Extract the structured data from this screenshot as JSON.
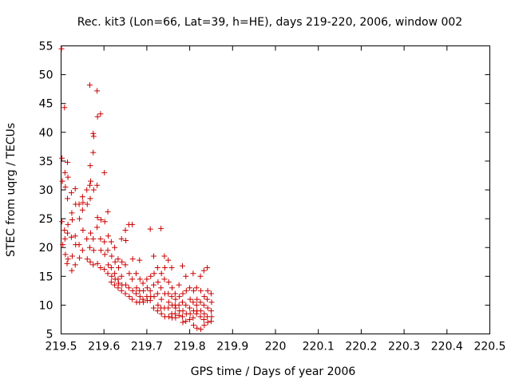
{
  "chart_data": {
    "type": "scatter",
    "title": "Rec. kit3 (Lon=66, Lat=39, h=HE), days 219-220, 2006, window 002",
    "xlabel": "GPS time / Days of year 2006",
    "ylabel": "STEC from uqrg / TECUs",
    "xlim": [
      219.5,
      220.5
    ],
    "ylim": [
      5,
      55
    ],
    "x_ticks": [
      219.5,
      219.6,
      219.7,
      219.8,
      219.9,
      220.0,
      220.1,
      220.2,
      220.3,
      220.4,
      220.5
    ],
    "x_tick_labels": [
      "219.5",
      "219.6",
      "219.7",
      "219.8",
      "219.9",
      "220",
      "220.1",
      "220.2",
      "220.3",
      "220.4",
      "220.5"
    ],
    "y_ticks": [
      5,
      10,
      15,
      20,
      25,
      30,
      35,
      40,
      45,
      50,
      55
    ],
    "y_tick_labels": [
      "5",
      "10",
      "15",
      "20",
      "25",
      "30",
      "35",
      "40",
      "45",
      "50",
      "55"
    ],
    "grid": false,
    "marker": "+",
    "marker_color": "#cc0000",
    "series": [
      {
        "name": "STEC",
        "points": [
          [
            219.501,
            54.5
          ],
          [
            219.502,
            35.5
          ],
          [
            219.503,
            31.5
          ],
          [
            219.502,
            24.5
          ],
          [
            219.504,
            20.5
          ],
          [
            219.508,
            44.3
          ],
          [
            219.509,
            33.0
          ],
          [
            219.51,
            30.5
          ],
          [
            219.508,
            23.0
          ],
          [
            219.509,
            21.5
          ],
          [
            219.51,
            18.8
          ],
          [
            219.515,
            34.8
          ],
          [
            219.516,
            32.2
          ],
          [
            219.515,
            28.5
          ],
          [
            219.516,
            24.0
          ],
          [
            219.515,
            22.5
          ],
          [
            219.516,
            18.0
          ],
          [
            219.514,
            17.2
          ],
          [
            219.524,
            29.5
          ],
          [
            219.525,
            26.0
          ],
          [
            219.526,
            24.8
          ],
          [
            219.524,
            21.8
          ],
          [
            219.526,
            18.5
          ],
          [
            219.525,
            16.0
          ],
          [
            219.533,
            30.2
          ],
          [
            219.534,
            27.5
          ],
          [
            219.533,
            22.0
          ],
          [
            219.534,
            20.5
          ],
          [
            219.533,
            17.0
          ],
          [
            219.542,
            27.5
          ],
          [
            219.543,
            25.0
          ],
          [
            219.542,
            20.5
          ],
          [
            219.543,
            18.2
          ],
          [
            219.55,
            28.8
          ],
          [
            219.551,
            27.8
          ],
          [
            219.55,
            26.5
          ],
          [
            219.551,
            23.0
          ],
          [
            219.55,
            19.5
          ],
          [
            219.56,
            30.0
          ],
          [
            219.561,
            27.5
          ],
          [
            219.56,
            21.5
          ],
          [
            219.561,
            18.0
          ],
          [
            219.567,
            48.2
          ],
          [
            219.568,
            34.2
          ],
          [
            219.569,
            31.5
          ],
          [
            219.567,
            30.8
          ],
          [
            219.568,
            28.5
          ],
          [
            219.569,
            22.5
          ],
          [
            219.567,
            20.0
          ],
          [
            219.568,
            17.5
          ],
          [
            219.575,
            39.8
          ],
          [
            219.576,
            39.3
          ],
          [
            219.575,
            36.5
          ],
          [
            219.576,
            30.0
          ],
          [
            219.575,
            21.5
          ],
          [
            219.576,
            19.5
          ],
          [
            219.575,
            17.0
          ],
          [
            219.584,
            47.2
          ],
          [
            219.585,
            42.7
          ],
          [
            219.584,
            30.8
          ],
          [
            219.585,
            25.2
          ],
          [
            219.584,
            23.5
          ],
          [
            219.585,
            17.2
          ],
          [
            219.592,
            43.2
          ],
          [
            219.593,
            24.8
          ],
          [
            219.592,
            21.5
          ],
          [
            219.593,
            19.5
          ],
          [
            219.592,
            16.5
          ],
          [
            219.601,
            33.0
          ],
          [
            219.602,
            24.5
          ],
          [
            219.601,
            21.0
          ],
          [
            219.602,
            18.8
          ],
          [
            219.601,
            16.2
          ],
          [
            219.609,
            26.2
          ],
          [
            219.61,
            22.0
          ],
          [
            219.609,
            19.5
          ],
          [
            219.61,
            17.0
          ],
          [
            219.609,
            15.5
          ],
          [
            219.617,
            21.0
          ],
          [
            219.618,
            18.5
          ],
          [
            219.617,
            16.5
          ],
          [
            219.618,
            15.0
          ],
          [
            219.617,
            14.0
          ],
          [
            219.625,
            20.0
          ],
          [
            219.626,
            17.5
          ],
          [
            219.625,
            15.5
          ],
          [
            219.626,
            14.5
          ],
          [
            219.625,
            13.5
          ],
          [
            219.633,
            18.0
          ],
          [
            219.634,
            16.5
          ],
          [
            219.633,
            14.5
          ],
          [
            219.634,
            13.8
          ],
          [
            219.633,
            13.0
          ],
          [
            219.641,
            21.5
          ],
          [
            219.642,
            17.5
          ],
          [
            219.641,
            15.0
          ],
          [
            219.642,
            13.5
          ],
          [
            219.641,
            12.5
          ],
          [
            219.65,
            23.0
          ],
          [
            219.651,
            21.2
          ],
          [
            219.65,
            17.0
          ],
          [
            219.651,
            13.5
          ],
          [
            219.65,
            12.0
          ],
          [
            219.658,
            24.0
          ],
          [
            219.659,
            15.5
          ],
          [
            219.658,
            13.0
          ],
          [
            219.659,
            11.5
          ],
          [
            219.666,
            24.0
          ],
          [
            219.667,
            18.0
          ],
          [
            219.666,
            14.5
          ],
          [
            219.667,
            12.5
          ],
          [
            219.666,
            11.0
          ],
          [
            219.675,
            15.5
          ],
          [
            219.676,
            13.0
          ],
          [
            219.675,
            12.0
          ],
          [
            219.676,
            10.5
          ],
          [
            219.683,
            17.8
          ],
          [
            219.684,
            14.5
          ],
          [
            219.683,
            12.5
          ],
          [
            219.684,
            11.5
          ],
          [
            219.683,
            10.5
          ],
          [
            219.691,
            13.8
          ],
          [
            219.692,
            12.5
          ],
          [
            219.691,
            11.0
          ],
          [
            219.692,
            10.5
          ],
          [
            219.7,
            14.5
          ],
          [
            219.701,
            13.0
          ],
          [
            219.7,
            11.5
          ],
          [
            219.701,
            10.8
          ],
          [
            219.708,
            23.2
          ],
          [
            219.709,
            15.0
          ],
          [
            219.708,
            12.5
          ],
          [
            219.709,
            11.5
          ],
          [
            219.708,
            10.8
          ],
          [
            219.716,
            18.5
          ],
          [
            219.717,
            15.5
          ],
          [
            219.716,
            13.5
          ],
          [
            219.717,
            11.5
          ],
          [
            219.716,
            9.5
          ],
          [
            219.725,
            16.5
          ],
          [
            219.726,
            14.0
          ],
          [
            219.725,
            12.0
          ],
          [
            219.726,
            10.0
          ],
          [
            219.725,
            9.0
          ],
          [
            219.733,
            23.3
          ],
          [
            219.734,
            15.5
          ],
          [
            219.733,
            13.0
          ],
          [
            219.734,
            11.0
          ],
          [
            219.733,
            9.5
          ],
          [
            219.734,
            8.5
          ],
          [
            219.741,
            18.5
          ],
          [
            219.742,
            16.5
          ],
          [
            219.741,
            14.5
          ],
          [
            219.742,
            12.0
          ],
          [
            219.741,
            9.5
          ],
          [
            219.742,
            8.0
          ],
          [
            219.75,
            17.8
          ],
          [
            219.751,
            14.0
          ],
          [
            219.75,
            12.0
          ],
          [
            219.751,
            10.5
          ],
          [
            219.75,
            9.5
          ],
          [
            219.751,
            8.0
          ],
          [
            219.758,
            16.5
          ],
          [
            219.759,
            13.0
          ],
          [
            219.758,
            11.5
          ],
          [
            219.759,
            10.0
          ],
          [
            219.758,
            8.5
          ],
          [
            219.759,
            7.8
          ],
          [
            219.766,
            12.0
          ],
          [
            219.767,
            11.0
          ],
          [
            219.766,
            10.0
          ],
          [
            219.767,
            9.5
          ],
          [
            219.766,
            8.5
          ],
          [
            219.767,
            7.8
          ],
          [
            219.775,
            13.5
          ],
          [
            219.776,
            11.5
          ],
          [
            219.775,
            10.0
          ],
          [
            219.776,
            9.0
          ],
          [
            219.775,
            8.2
          ],
          [
            219.783,
            16.8
          ],
          [
            219.784,
            12.0
          ],
          [
            219.783,
            10.5
          ],
          [
            219.784,
            9.0
          ],
          [
            219.783,
            8.0
          ],
          [
            219.784,
            7.0
          ],
          [
            219.791,
            15.0
          ],
          [
            219.792,
            12.5
          ],
          [
            219.791,
            10.0
          ],
          [
            219.792,
            8.5
          ],
          [
            219.791,
            7.2
          ],
          [
            219.8,
            13.0
          ],
          [
            219.801,
            11.0
          ],
          [
            219.8,
            9.5
          ],
          [
            219.801,
            8.5
          ],
          [
            219.8,
            7.5
          ],
          [
            219.808,
            15.5
          ],
          [
            219.809,
            12.5
          ],
          [
            219.808,
            10.5
          ],
          [
            219.809,
            9.0
          ],
          [
            219.808,
            7.8
          ],
          [
            219.809,
            6.5
          ],
          [
            219.816,
            13.0
          ],
          [
            219.817,
            11.0
          ],
          [
            219.816,
            10.0
          ],
          [
            219.817,
            9.0
          ],
          [
            219.816,
            8.5
          ],
          [
            219.817,
            6.0
          ],
          [
            219.825,
            15.0
          ],
          [
            219.826,
            12.5
          ],
          [
            219.825,
            10.5
          ],
          [
            219.826,
            9.0
          ],
          [
            219.825,
            8.0
          ],
          [
            219.826,
            5.8
          ],
          [
            219.833,
            16.0
          ],
          [
            219.834,
            11.5
          ],
          [
            219.833,
            10.0
          ],
          [
            219.834,
            8.5
          ],
          [
            219.833,
            7.5
          ],
          [
            219.834,
            6.5
          ],
          [
            219.841,
            16.5
          ],
          [
            219.842,
            12.5
          ],
          [
            219.841,
            11.0
          ],
          [
            219.842,
            9.5
          ],
          [
            219.841,
            8.0
          ],
          [
            219.842,
            7.0
          ],
          [
            219.85,
            12.0
          ],
          [
            219.851,
            10.5
          ],
          [
            219.85,
            9.0
          ],
          [
            219.851,
            8.0
          ],
          [
            219.85,
            7.2
          ]
        ]
      }
    ]
  }
}
